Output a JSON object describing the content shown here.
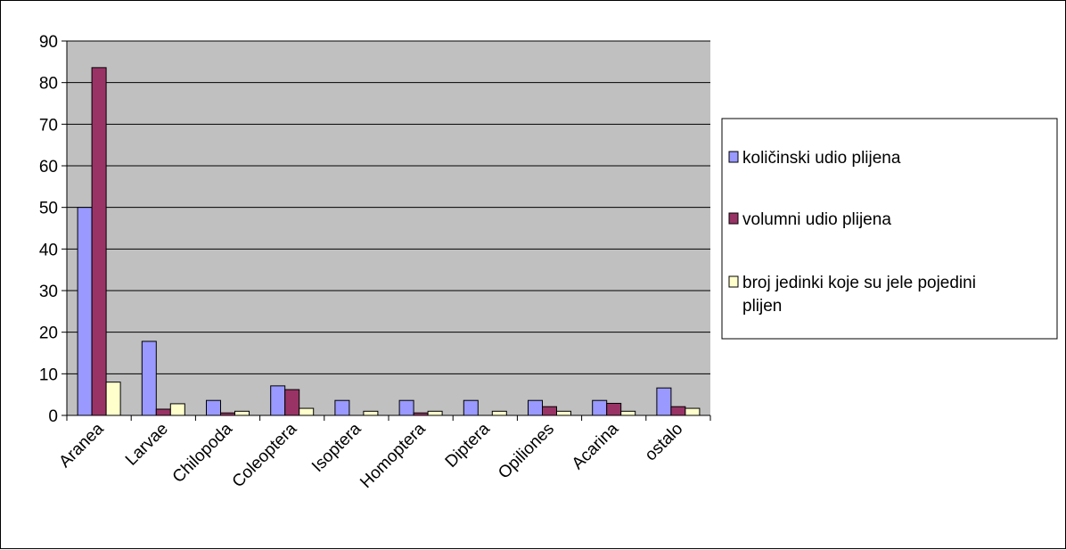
{
  "chart_data": {
    "type": "bar",
    "title": "",
    "xlabel": "",
    "ylabel": "",
    "ylim": [
      0,
      90
    ],
    "yticks": [
      0,
      10,
      20,
      30,
      40,
      50,
      60,
      70,
      80,
      90
    ],
    "grid": true,
    "legend_position": "right",
    "plot_background": "#c0c0c0",
    "categories": [
      "Aranea",
      "Larvae",
      "Chilopoda",
      "Coleoptera",
      "Isoptera",
      "Homoptera",
      "Diptera",
      "Opiliones",
      "Acarina",
      "ostalo"
    ],
    "series": [
      {
        "name": "količinski udio plijena",
        "color": "#9999ff",
        "values": [
          50,
          17.8,
          3.6,
          7.1,
          3.6,
          3.6,
          3.6,
          3.6,
          3.6,
          6.6
        ]
      },
      {
        "name": "volumni udio plijena",
        "color": "#993366",
        "values": [
          83.6,
          1.5,
          0.6,
          6.2,
          0,
          0.6,
          0,
          2.1,
          2.9,
          2.1
        ]
      },
      {
        "name": "broj jedinki koje su jele pojedini plijen",
        "name_lines": [
          "broj jedinki koje su jele pojedini",
          "plijen"
        ],
        "color": "#ffffcc",
        "values": [
          8,
          2.8,
          1,
          1.7,
          1,
          1,
          1,
          1,
          1,
          1.7
        ]
      }
    ]
  }
}
